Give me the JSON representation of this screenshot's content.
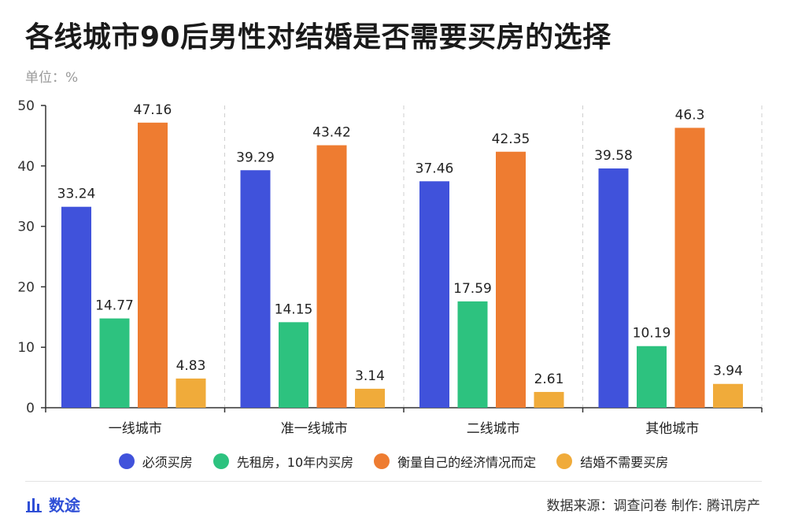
{
  "title": "各线城市90后男性对结婚是否需要买房的选择",
  "unit": "单位：%",
  "footer": {
    "brand": "数途",
    "brand_icon": "bar-chart-icon",
    "source": "数据来源：调查问卷  制作: 腾讯房产"
  },
  "colors": {
    "brand": "#2f4fd6",
    "axis": "#333333",
    "grid": "#d0d0d0"
  },
  "chart_data": {
    "type": "bar",
    "categories": [
      "一线城市",
      "准一线城市",
      "二线城市",
      "其他城市"
    ],
    "series": [
      {
        "name": "必须买房",
        "color": "#4052db",
        "values": [
          33.24,
          39.29,
          37.46,
          39.58
        ]
      },
      {
        "name": "先租房，10年内买房",
        "color": "#2dc27f",
        "values": [
          14.77,
          14.15,
          17.59,
          10.19
        ]
      },
      {
        "name": "衡量自己的经济情况而定",
        "color": "#ee7c31",
        "values": [
          47.16,
          43.42,
          42.35,
          46.3
        ]
      },
      {
        "name": "结婚不需要买房",
        "color": "#f0ab3a",
        "values": [
          4.83,
          3.14,
          2.61,
          3.94
        ]
      }
    ],
    "ylim": [
      0,
      50
    ],
    "yticks": [
      0,
      10,
      20,
      30,
      40,
      50
    ],
    "grid": false,
    "legend": "bottom"
  }
}
